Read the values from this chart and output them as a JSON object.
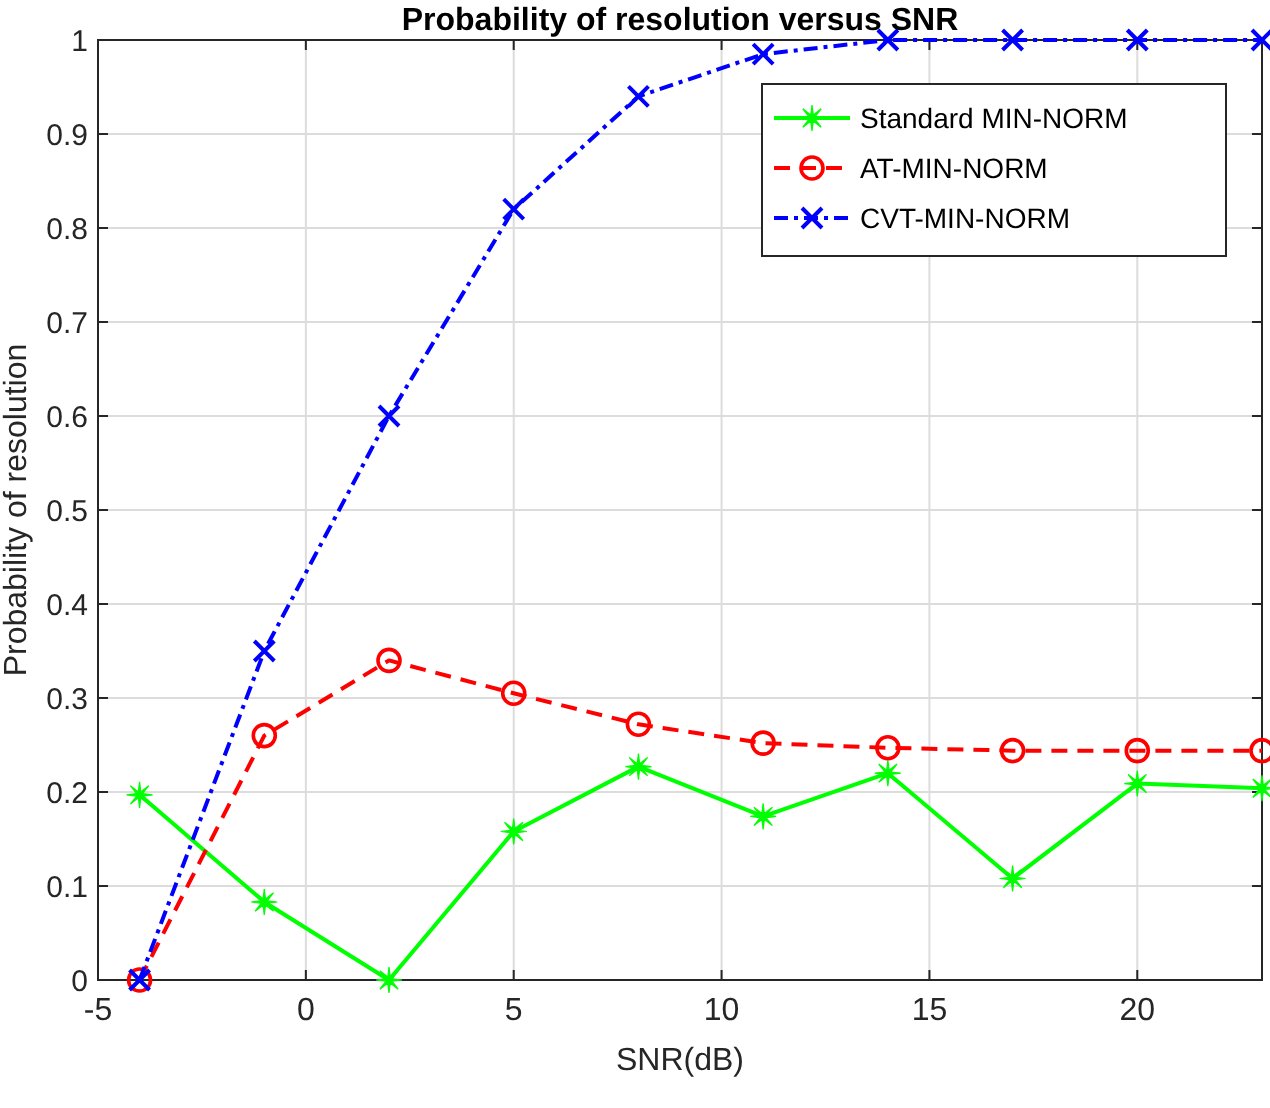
{
  "chart_data": {
    "type": "line",
    "title": "Probability of resolution versus SNR",
    "xlabel": "SNR(dB)",
    "ylabel": "Probability of resolution",
    "x": [
      -4,
      -1,
      2,
      5,
      8,
      11,
      14,
      17,
      20,
      23
    ],
    "xlim": [
      -5,
      23
    ],
    "xticks": [
      -5,
      0,
      5,
      10,
      15,
      20
    ],
    "ylim": [
      0,
      1
    ],
    "yticks": [
      0,
      0.1,
      0.2,
      0.3,
      0.4,
      0.5,
      0.6,
      0.7,
      0.8,
      0.9,
      1
    ],
    "grid": true,
    "legend": "top right",
    "series": [
      {
        "name": "Standard MIN-NORM",
        "color": "#00ff00",
        "marker": "star",
        "line_style": "solid",
        "values": [
          0.197,
          0.083,
          0.0,
          0.158,
          0.227,
          0.174,
          0.22,
          0.108,
          0.209,
          0.204
        ]
      },
      {
        "name": "AT-MIN-NORM",
        "color": "#ff0000",
        "marker": "circle",
        "line_style": "dashed",
        "values": [
          0,
          0.26,
          0.34,
          0.305,
          0.272,
          0.252,
          0.247,
          0.244,
          0.244,
          0.244
        ]
      },
      {
        "name": "CVT-MIN-NORM",
        "color": "#0000ff",
        "marker": "cross",
        "line_style": "dashdot",
        "values": [
          0,
          0.35,
          0.6,
          0.82,
          0.94,
          0.985,
          1,
          1,
          1,
          1
        ]
      }
    ]
  }
}
